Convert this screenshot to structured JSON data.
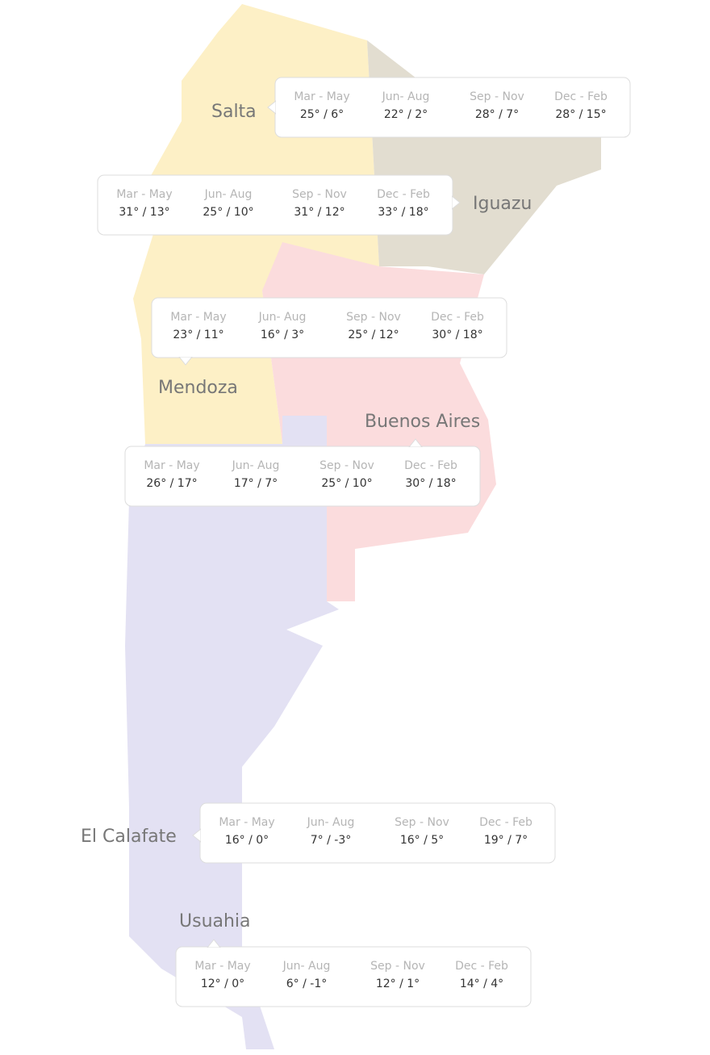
{
  "seasons": [
    "Mar - May",
    "Jun- Aug",
    "Sep - Nov",
    "Dec - Feb"
  ],
  "locations": [
    {
      "name": "Salta",
      "temps": [
        "25° / 6°",
        "22° / 2°",
        "28° / 7°",
        "28° / 15°"
      ]
    },
    {
      "name": "Iguazu",
      "temps": [
        "31° / 13°",
        "25° / 10°",
        "31° / 12°",
        "33° / 18°"
      ]
    },
    {
      "name": "Mendoza",
      "temps": [
        "23° / 11°",
        "16° / 3°",
        "25° / 12°",
        "30° / 18°"
      ]
    },
    {
      "name": "Buenos Aires",
      "temps": [
        "26° / 17°",
        "17° / 7°",
        "25° / 10°",
        "30° / 18°"
      ]
    },
    {
      "name": "El Calafate",
      "temps": [
        "16° / 0°",
        "7° / -3°",
        "16° / 5°",
        "19° / 7°"
      ]
    },
    {
      "name": "Usuahia",
      "temps": [
        "12° / 0°",
        "6° / -1°",
        "12° / 1°",
        "14° / 4°"
      ]
    }
  ]
}
